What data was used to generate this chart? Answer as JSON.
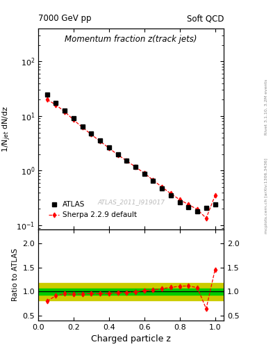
{
  "title": "Momentum fraction z(track jets)",
  "header_left": "7000 GeV pp",
  "header_right": "Soft QCD",
  "ylabel_main": "1/N$_{jet}$ dN/dz",
  "ylabel_ratio": "Ratio to ATLAS",
  "xlabel": "Charged particle z",
  "watermark": "ATLAS_2011_I919017",
  "side_label": "Rivet 3.1.10, 3.2M events",
  "side_label2": "mcplots.cern.ch [arXiv:1306.3436]",
  "atlas_z": [
    0.05,
    0.1,
    0.15,
    0.2,
    0.25,
    0.3,
    0.35,
    0.4,
    0.45,
    0.5,
    0.55,
    0.6,
    0.65,
    0.7,
    0.75,
    0.8,
    0.85,
    0.9,
    0.95,
    1.0
  ],
  "atlas_y": [
    25.0,
    17.5,
    12.5,
    9.0,
    6.5,
    4.8,
    3.6,
    2.7,
    2.0,
    1.55,
    1.18,
    0.88,
    0.65,
    0.47,
    0.35,
    0.265,
    0.215,
    0.18,
    0.21,
    0.24
  ],
  "sherpa_z": [
    0.05,
    0.1,
    0.15,
    0.2,
    0.25,
    0.3,
    0.35,
    0.4,
    0.45,
    0.5,
    0.55,
    0.6,
    0.65,
    0.7,
    0.75,
    0.8,
    0.85,
    0.9,
    0.95,
    1.0
  ],
  "sherpa_y": [
    20.0,
    16.0,
    12.0,
    8.5,
    6.2,
    4.6,
    3.45,
    2.6,
    1.95,
    1.52,
    1.17,
    0.9,
    0.67,
    0.5,
    0.38,
    0.295,
    0.24,
    0.195,
    0.135,
    0.35
  ],
  "ratio_z": [
    0.05,
    0.1,
    0.15,
    0.2,
    0.25,
    0.3,
    0.35,
    0.4,
    0.45,
    0.5,
    0.55,
    0.6,
    0.65,
    0.7,
    0.75,
    0.8,
    0.85,
    0.9,
    0.95,
    1.0
  ],
  "ratio_y": [
    0.8,
    0.915,
    0.96,
    0.945,
    0.953,
    0.958,
    0.958,
    0.963,
    0.975,
    0.98,
    0.992,
    1.023,
    1.031,
    1.064,
    1.086,
    1.113,
    1.117,
    1.083,
    0.643,
    1.458
  ],
  "green_band_lo": 0.93,
  "green_band_hi": 1.07,
  "yellow_band_lo": 0.82,
  "yellow_band_hi": 1.18,
  "atlas_color": "#000000",
  "sherpa_color": "#ff0000",
  "green_color": "#00cc00",
  "yellow_color": "#cccc00",
  "ylim_main_lo": 0.085,
  "ylim_main_hi": 400,
  "ylim_ratio_lo": 0.4,
  "ylim_ratio_hi": 2.3,
  "xlim_lo": 0.0,
  "xlim_hi": 1.05
}
